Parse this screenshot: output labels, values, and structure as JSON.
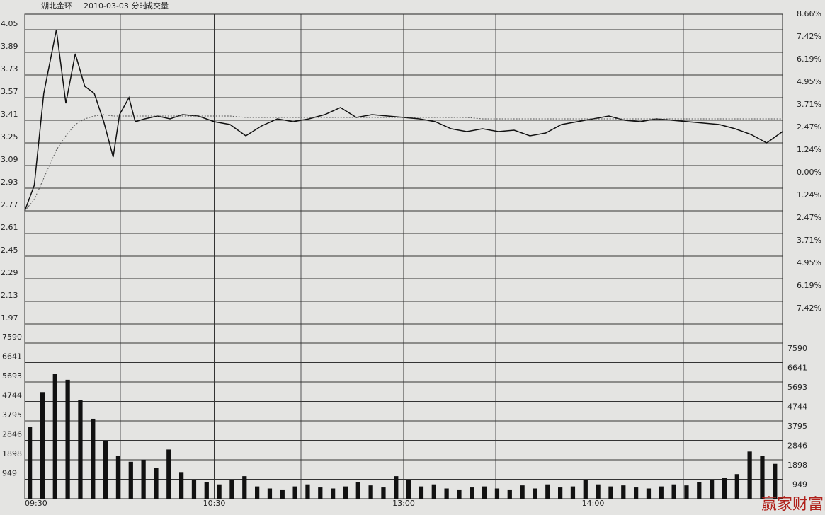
{
  "chart_data": [
    {
      "type": "line",
      "title": "湖北金环",
      "subtitle": "2010-03-03 分时",
      "grid": true,
      "x": [
        0,
        3,
        6,
        10,
        13,
        16,
        19,
        22,
        25,
        28,
        30,
        33,
        35,
        38,
        42,
        46,
        50,
        55,
        60,
        65,
        70,
        75,
        80,
        85,
        90,
        95,
        100,
        105,
        110,
        115,
        120,
        125,
        130,
        135,
        140,
        145,
        150,
        155,
        160,
        165,
        170,
        175,
        180,
        185,
        190,
        195,
        200,
        205,
        210,
        215,
        220,
        225,
        230,
        235,
        240
      ],
      "xlim": [
        0,
        240
      ],
      "xticks": [
        {
          "value": 0,
          "label": "09:30"
        },
        {
          "value": 60,
          "label": "10:30"
        },
        {
          "value": 120,
          "label": "13:00"
        },
        {
          "value": 180,
          "label": "14:00"
        }
      ],
      "ylim": [
        1.97,
        4.05
      ],
      "yticks": [
        4.05,
        3.89,
        3.73,
        3.57,
        3.41,
        3.25,
        3.09,
        2.93,
        2.77,
        2.61,
        2.45,
        2.29,
        2.13,
        1.97
      ],
      "y2lim": [
        -7.42,
        8.66
      ],
      "y2ticks": [
        {
          "value": 8.66,
          "label": "8.66%"
        },
        {
          "value": 7.42,
          "label": "7.42%"
        },
        {
          "value": 6.19,
          "label": "6.19%"
        },
        {
          "value": 4.95,
          "label": "4.95%"
        },
        {
          "value": 3.71,
          "label": "3.71%"
        },
        {
          "value": 2.47,
          "label": "2.47%"
        },
        {
          "value": 1.24,
          "label": "1.24%"
        },
        {
          "value": 0,
          "label": "0.00%"
        },
        {
          "value": -1.24,
          "label": "1.24%"
        },
        {
          "value": -2.47,
          "label": "2.47%"
        },
        {
          "value": -3.71,
          "label": "3.71%"
        },
        {
          "value": -4.95,
          "label": "4.95%"
        },
        {
          "value": -6.19,
          "label": "6.19%"
        },
        {
          "value": -7.42,
          "label": "7.42%"
        }
      ],
      "series": [
        {
          "color": "#111111",
          "style": "solid",
          "values": [
            2.77,
            2.95,
            3.6,
            4.05,
            3.53,
            3.88,
            3.65,
            3.6,
            3.4,
            3.15,
            3.45,
            3.57,
            3.4,
            3.42,
            3.44,
            3.42,
            3.45,
            3.44,
            3.4,
            3.38,
            3.3,
            3.37,
            3.42,
            3.4,
            3.42,
            3.45,
            3.5,
            3.43,
            3.45,
            3.44,
            3.43,
            3.42,
            3.4,
            3.35,
            3.33,
            3.35,
            3.33,
            3.34,
            3.3,
            3.32,
            3.38,
            3.4,
            3.42,
            3.44,
            3.41,
            3.4,
            3.42,
            3.41,
            3.4,
            3.39,
            3.38,
            3.35,
            3.31,
            3.25,
            3.33
          ]
        },
        {
          "color": "#555555",
          "style": "dotted",
          "values": [
            2.77,
            2.85,
            3.0,
            3.2,
            3.3,
            3.38,
            3.42,
            3.44,
            3.45,
            3.44,
            3.44,
            3.44,
            3.44,
            3.44,
            3.44,
            3.44,
            3.44,
            3.44,
            3.44,
            3.44,
            3.43,
            3.43,
            3.43,
            3.43,
            3.43,
            3.43,
            3.43,
            3.43,
            3.43,
            3.43,
            3.43,
            3.43,
            3.43,
            3.43,
            3.43,
            3.42,
            3.42,
            3.42,
            3.42,
            3.42,
            3.42,
            3.42,
            3.42,
            3.42,
            3.42,
            3.42,
            3.42,
            3.42,
            3.42,
            3.42,
            3.42,
            3.42,
            3.42,
            3.42,
            3.42
          ]
        }
      ]
    },
    {
      "type": "bar",
      "title": "成交量",
      "color": "#111111",
      "grid": true,
      "x": [
        0,
        4,
        8,
        12,
        16,
        20,
        24,
        28,
        32,
        36,
        40,
        44,
        48,
        52,
        56,
        60,
        64,
        68,
        72,
        76,
        80,
        84,
        88,
        92,
        96,
        100,
        104,
        108,
        112,
        116,
        120,
        124,
        128,
        132,
        136,
        140,
        144,
        148,
        152,
        156,
        160,
        164,
        168,
        172,
        176,
        180,
        184,
        188,
        192,
        196,
        200,
        204,
        208,
        212,
        216,
        220,
        224,
        228,
        232,
        236
      ],
      "xlim": [
        0,
        240
      ],
      "values": [
        3500,
        5200,
        6100,
        5800,
        4800,
        3900,
        2800,
        2100,
        1800,
        1900,
        1500,
        2400,
        1300,
        900,
        800,
        700,
        900,
        1100,
        600,
        500,
        450,
        600,
        700,
        550,
        500,
        600,
        800,
        650,
        550,
        1100,
        900,
        600,
        700,
        500,
        450,
        550,
        600,
        500,
        450,
        650,
        500,
        700,
        550,
        600,
        900,
        700,
        600,
        650,
        550,
        500,
        600,
        700,
        650,
        800,
        900,
        1000,
        1200,
        2300,
        2100,
        1700
      ],
      "ylim": [
        0,
        7590
      ],
      "yticks": [
        7590,
        6641,
        5693,
        4744,
        3795,
        2846,
        1898,
        949
      ]
    }
  ],
  "watermark": "赢家财富网"
}
